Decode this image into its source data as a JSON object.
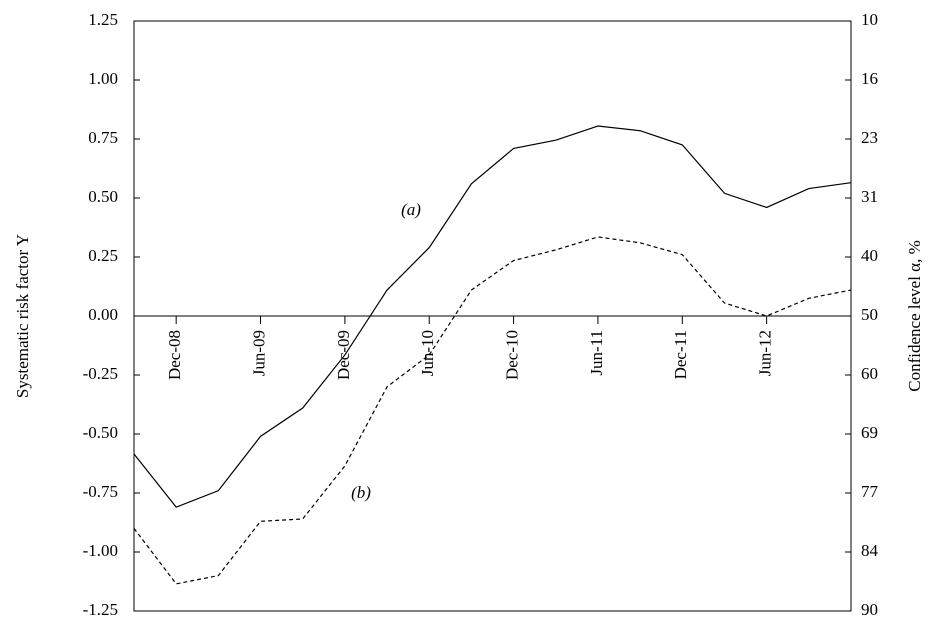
{
  "chart_data": {
    "type": "line",
    "ylabel": "Systematic risk factor Y",
    "y2label": "Confidence level α, %",
    "categories": [
      null,
      "Dec-08",
      null,
      "Jun-09",
      null,
      "Dec-09",
      null,
      "Jun-10",
      null,
      "Dec-10",
      null,
      "Jun-11",
      null,
      "Dec-11",
      null,
      "Jun-12",
      null,
      null
    ],
    "series": [
      {
        "name": "(a)",
        "color": "#000000",
        "dash": "none",
        "values": [
          -0.585,
          -0.81,
          -0.74,
          -0.51,
          -0.39,
          -0.165,
          0.11,
          0.29,
          0.56,
          0.71,
          0.745,
          0.805,
          0.785,
          0.725,
          0.52,
          0.46,
          0.54,
          0.565
        ]
      },
      {
        "name": "(b)",
        "color": "#000000",
        "dash": "4 3",
        "values": [
          -0.9,
          -1.135,
          -1.1,
          -0.87,
          -0.86,
          -0.635,
          -0.3,
          -0.165,
          0.11,
          0.235,
          0.28,
          0.335,
          0.31,
          0.26,
          0.055,
          0.0,
          0.075,
          0.11
        ]
      }
    ],
    "ylim": [
      -1.25,
      1.25
    ],
    "yticks": [
      {
        "value": -1.25,
        "label": "-1.25"
      },
      {
        "value": -1.0,
        "label": "-1.00"
      },
      {
        "value": -0.75,
        "label": "-0.75"
      },
      {
        "value": -0.5,
        "label": "-0.50"
      },
      {
        "value": -0.25,
        "label": "-0.25"
      },
      {
        "value": 0,
        "label": "0.00"
      },
      {
        "value": 0.25,
        "label": "0.25"
      },
      {
        "value": 0.5,
        "label": "0.50"
      },
      {
        "value": 0.75,
        "label": "0.75"
      },
      {
        "value": 1.0,
        "label": "1.00"
      },
      {
        "value": 1.25,
        "label": "1.25"
      }
    ],
    "y2lim": [
      90,
      10
    ],
    "y2ticks": [
      90,
      84,
      77,
      69,
      60,
      50,
      40,
      31,
      23,
      16,
      10
    ]
  }
}
